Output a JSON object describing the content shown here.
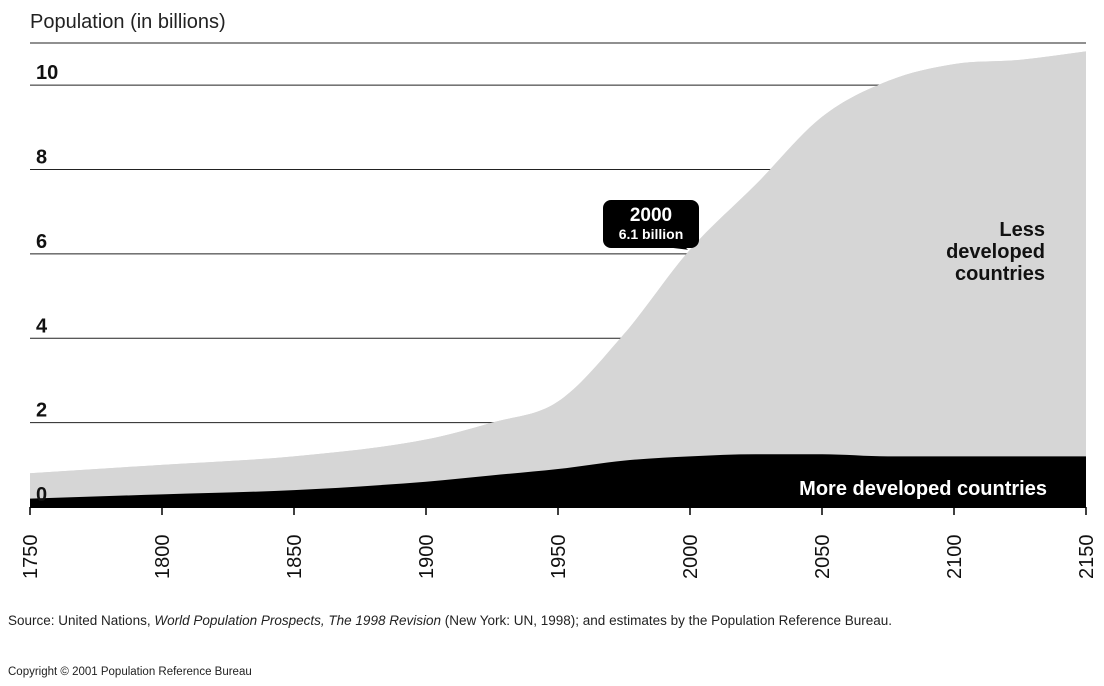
{
  "chart_data": {
    "type": "area",
    "stacked": true,
    "ylabel": "Population (in billions)",
    "ylim": [
      0,
      11
    ],
    "yticks": [
      0,
      2,
      4,
      6,
      8,
      10
    ],
    "xlim": [
      1750,
      2150
    ],
    "xticks": [
      1750,
      1800,
      1850,
      1900,
      1950,
      2000,
      2050,
      2100,
      2150
    ],
    "grid": true,
    "x": [
      1750,
      1800,
      1850,
      1900,
      1925,
      1950,
      1975,
      2000,
      2025,
      2050,
      2075,
      2100,
      2125,
      2150
    ],
    "series": [
      {
        "name": "More developed countries",
        "color": "#000000",
        "values": [
          0.2,
          0.3,
          0.4,
          0.6,
          0.75,
          0.9,
          1.1,
          1.2,
          1.25,
          1.25,
          1.2,
          1.2,
          1.2,
          1.2
        ]
      },
      {
        "name": "Less developed countries",
        "color": "#d6d6d6",
        "values": [
          0.6,
          0.7,
          0.8,
          1.0,
          1.25,
          1.6,
          3.0,
          4.9,
          6.4,
          8.0,
          8.9,
          9.3,
          9.4,
          9.6
        ]
      }
    ],
    "annotation": {
      "x": 2000,
      "y": 6.1,
      "year": "2000",
      "value": "6.1 billion"
    },
    "series_labels": {
      "less": [
        "Less",
        "developed",
        "countries"
      ],
      "more": "More developed countries"
    }
  },
  "source_prefix": "Source: United Nations, ",
  "source_title": "World Population Prospects, The 1998 Revision",
  "source_suffix": " (New York: UN, 1998); and estimates by the Population Reference Bureau.",
  "copyright": "Copyright © 2001 Population Reference Bureau"
}
